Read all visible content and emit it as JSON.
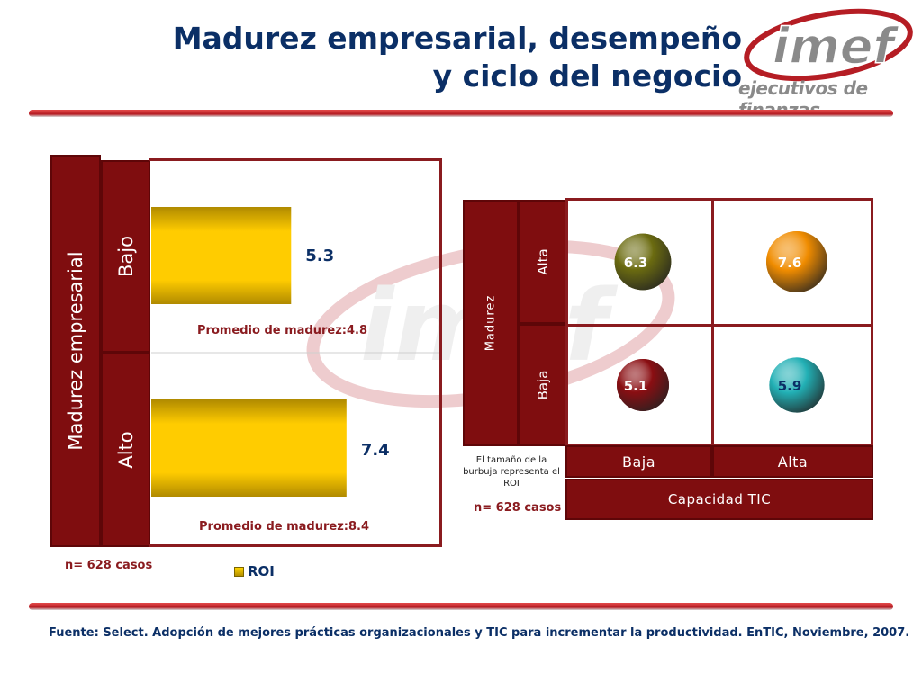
{
  "header": {
    "title_line1": "Madurez empresarial, desempeño",
    "title_line2": "y ciclo del negocio",
    "logo_text": "imef",
    "logo_subtext": "ejecutivos de finanzas"
  },
  "chart_data": [
    {
      "type": "bar",
      "orientation": "horizontal",
      "title": "",
      "axis_title": "Madurez empresarial",
      "categories": [
        "Bajo",
        "Alto"
      ],
      "series": [
        {
          "name": "ROI",
          "values": [
            5.3,
            7.4
          ]
        }
      ],
      "value_labels": [
        "5.3",
        "7.4"
      ],
      "annotations": [
        "Promedio de madurez:4.8",
        "Promedio de madurez:8.4"
      ],
      "note": "n= 628 casos",
      "legend": "bottom",
      "colors": {
        "bar": "#ffcc00",
        "bar_dark": "#b08a00",
        "frame": "#7f0d0f"
      }
    },
    {
      "type": "scatter",
      "subtype": "bubble-matrix",
      "y_title": "Madurez",
      "y_categories": [
        "Alta",
        "Baja"
      ],
      "x_title": "Capacidad TIC",
      "x_categories": [
        "Baja",
        "Alta"
      ],
      "points": [
        {
          "x": "Baja",
          "y": "Alta",
          "value": 6.3,
          "label": "6.3",
          "color": "#6b6b10"
        },
        {
          "x": "Alta",
          "y": "Alta",
          "value": 7.6,
          "label": "7.6",
          "color": "#f08c00"
        },
        {
          "x": "Baja",
          "y": "Baja",
          "value": 5.1,
          "label": "5.1",
          "color": "#8a0e12"
        },
        {
          "x": "Alta",
          "y": "Baja",
          "value": 5.9,
          "label": "5.9",
          "color": "#22b0b5"
        }
      ],
      "size_note": "El tamaño de la burbuja representa el ROI",
      "note": "n= 628 casos"
    }
  ],
  "footer": {
    "source": "Fuente: Select. Adopción de mejores prácticas organizacionales y TIC para incrementar la productividad. EnTIC, Noviembre, 2007."
  }
}
